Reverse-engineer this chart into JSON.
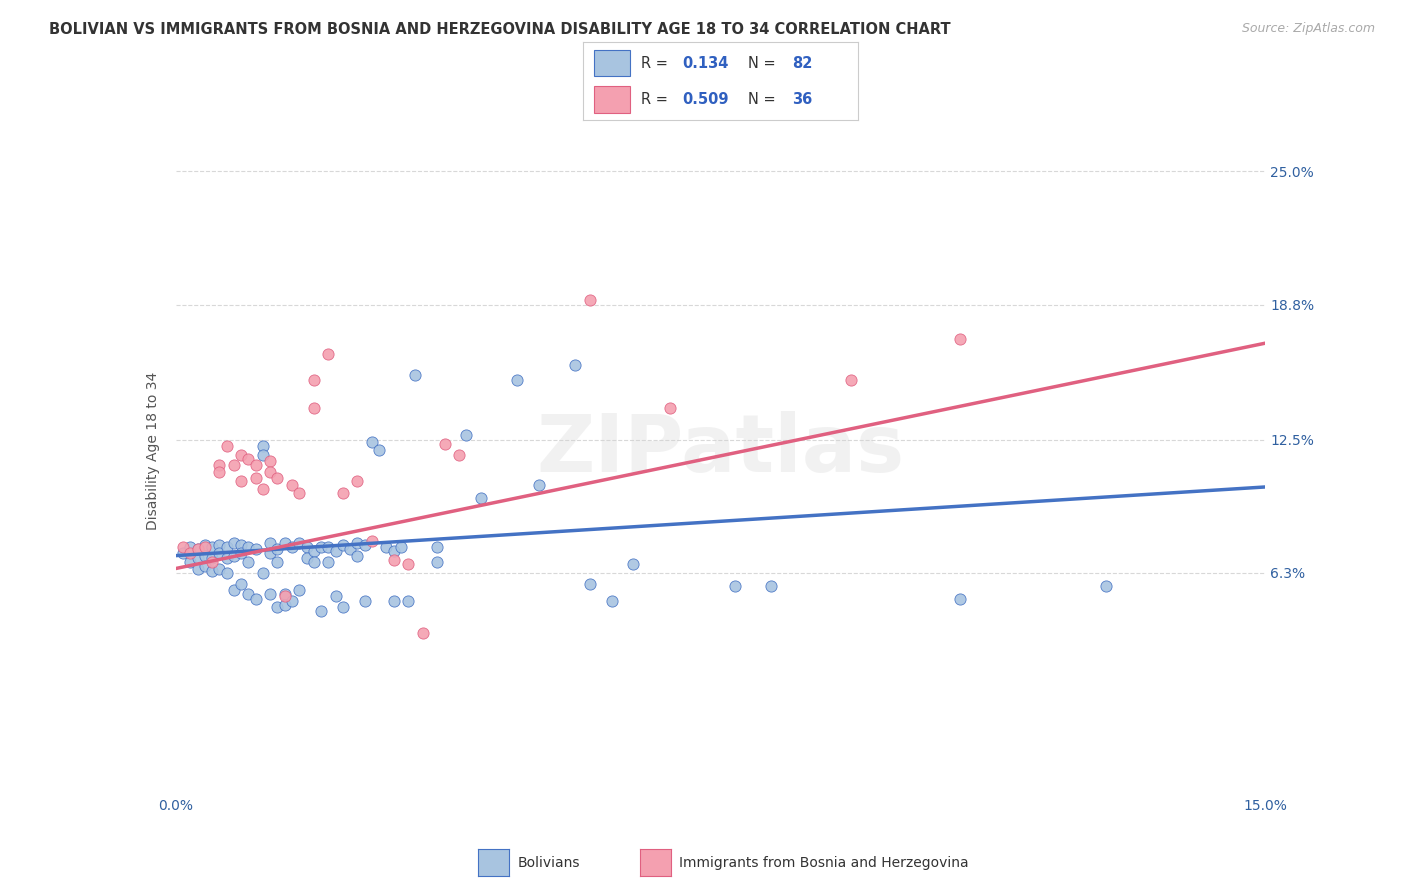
{
  "title": "BOLIVIAN VS IMMIGRANTS FROM BOSNIA AND HERZEGOVINA DISABILITY AGE 18 TO 34 CORRELATION CHART",
  "source": "Source: ZipAtlas.com",
  "ylabel": "Disability Age 18 to 34",
  "xlim": [
    0.0,
    0.15
  ],
  "ylim": [
    -0.04,
    0.28
  ],
  "ytick_labels": [
    "6.3%",
    "12.5%",
    "18.8%",
    "25.0%"
  ],
  "ytick_values": [
    0.063,
    0.125,
    0.188,
    0.25
  ],
  "blue_color": "#a8c4e0",
  "pink_color": "#f4a0b0",
  "blue_line_color": "#4472c4",
  "pink_line_color": "#e06080",
  "blue_scatter": [
    [
      0.001,
      0.072
    ],
    [
      0.002,
      0.075
    ],
    [
      0.002,
      0.068
    ],
    [
      0.003,
      0.074
    ],
    [
      0.003,
      0.07
    ],
    [
      0.003,
      0.065
    ],
    [
      0.004,
      0.076
    ],
    [
      0.004,
      0.071
    ],
    [
      0.004,
      0.066
    ],
    [
      0.005,
      0.075
    ],
    [
      0.005,
      0.07
    ],
    [
      0.005,
      0.064
    ],
    [
      0.006,
      0.076
    ],
    [
      0.006,
      0.072
    ],
    [
      0.006,
      0.065
    ],
    [
      0.007,
      0.075
    ],
    [
      0.007,
      0.07
    ],
    [
      0.007,
      0.063
    ],
    [
      0.008,
      0.077
    ],
    [
      0.008,
      0.071
    ],
    [
      0.008,
      0.055
    ],
    [
      0.009,
      0.076
    ],
    [
      0.009,
      0.072
    ],
    [
      0.009,
      0.058
    ],
    [
      0.01,
      0.075
    ],
    [
      0.01,
      0.068
    ],
    [
      0.01,
      0.053
    ],
    [
      0.011,
      0.074
    ],
    [
      0.011,
      0.051
    ],
    [
      0.012,
      0.122
    ],
    [
      0.012,
      0.118
    ],
    [
      0.012,
      0.063
    ],
    [
      0.013,
      0.077
    ],
    [
      0.013,
      0.072
    ],
    [
      0.013,
      0.053
    ],
    [
      0.014,
      0.074
    ],
    [
      0.014,
      0.068
    ],
    [
      0.014,
      0.047
    ],
    [
      0.015,
      0.077
    ],
    [
      0.015,
      0.053
    ],
    [
      0.015,
      0.048
    ],
    [
      0.016,
      0.075
    ],
    [
      0.016,
      0.05
    ],
    [
      0.017,
      0.077
    ],
    [
      0.017,
      0.055
    ],
    [
      0.018,
      0.075
    ],
    [
      0.018,
      0.07
    ],
    [
      0.019,
      0.073
    ],
    [
      0.019,
      0.068
    ],
    [
      0.02,
      0.075
    ],
    [
      0.02,
      0.045
    ],
    [
      0.021,
      0.075
    ],
    [
      0.021,
      0.068
    ],
    [
      0.022,
      0.073
    ],
    [
      0.022,
      0.052
    ],
    [
      0.023,
      0.076
    ],
    [
      0.023,
      0.047
    ],
    [
      0.024,
      0.074
    ],
    [
      0.025,
      0.077
    ],
    [
      0.025,
      0.071
    ],
    [
      0.026,
      0.076
    ],
    [
      0.026,
      0.05
    ],
    [
      0.027,
      0.124
    ],
    [
      0.028,
      0.12
    ],
    [
      0.029,
      0.075
    ],
    [
      0.03,
      0.073
    ],
    [
      0.03,
      0.05
    ],
    [
      0.031,
      0.075
    ],
    [
      0.032,
      0.05
    ],
    [
      0.033,
      0.155
    ],
    [
      0.036,
      0.075
    ],
    [
      0.036,
      0.068
    ],
    [
      0.04,
      0.127
    ],
    [
      0.042,
      0.098
    ],
    [
      0.047,
      0.153
    ],
    [
      0.05,
      0.104
    ],
    [
      0.055,
      0.16
    ],
    [
      0.057,
      0.058
    ],
    [
      0.06,
      0.05
    ],
    [
      0.063,
      0.067
    ],
    [
      0.077,
      0.057
    ],
    [
      0.082,
      0.057
    ],
    [
      0.108,
      0.051
    ],
    [
      0.128,
      0.057
    ]
  ],
  "pink_scatter": [
    [
      0.001,
      0.075
    ],
    [
      0.002,
      0.072
    ],
    [
      0.003,
      0.074
    ],
    [
      0.004,
      0.075
    ],
    [
      0.005,
      0.068
    ],
    [
      0.006,
      0.113
    ],
    [
      0.006,
      0.11
    ],
    [
      0.007,
      0.122
    ],
    [
      0.008,
      0.113
    ],
    [
      0.009,
      0.118
    ],
    [
      0.009,
      0.106
    ],
    [
      0.01,
      0.116
    ],
    [
      0.011,
      0.113
    ],
    [
      0.011,
      0.107
    ],
    [
      0.012,
      0.102
    ],
    [
      0.013,
      0.115
    ],
    [
      0.013,
      0.11
    ],
    [
      0.014,
      0.107
    ],
    [
      0.015,
      0.052
    ],
    [
      0.016,
      0.104
    ],
    [
      0.017,
      0.1
    ],
    [
      0.019,
      0.153
    ],
    [
      0.019,
      0.14
    ],
    [
      0.021,
      0.165
    ],
    [
      0.023,
      0.1
    ],
    [
      0.025,
      0.106
    ],
    [
      0.027,
      0.078
    ],
    [
      0.03,
      0.069
    ],
    [
      0.032,
      0.067
    ],
    [
      0.034,
      0.035
    ],
    [
      0.037,
      0.123
    ],
    [
      0.039,
      0.118
    ],
    [
      0.057,
      0.19
    ],
    [
      0.068,
      0.14
    ],
    [
      0.093,
      0.153
    ],
    [
      0.108,
      0.172
    ]
  ],
  "blue_trend_x": [
    0.0,
    0.15
  ],
  "blue_trend_y": [
    0.071,
    0.103
  ],
  "pink_trend_x": [
    0.0,
    0.15
  ],
  "pink_trend_y": [
    0.065,
    0.17
  ],
  "background_color": "#ffffff",
  "grid_color": "#d8d8d8",
  "title_fontsize": 10.5,
  "tick_fontsize": 10,
  "watermark": "ZIPatlas"
}
